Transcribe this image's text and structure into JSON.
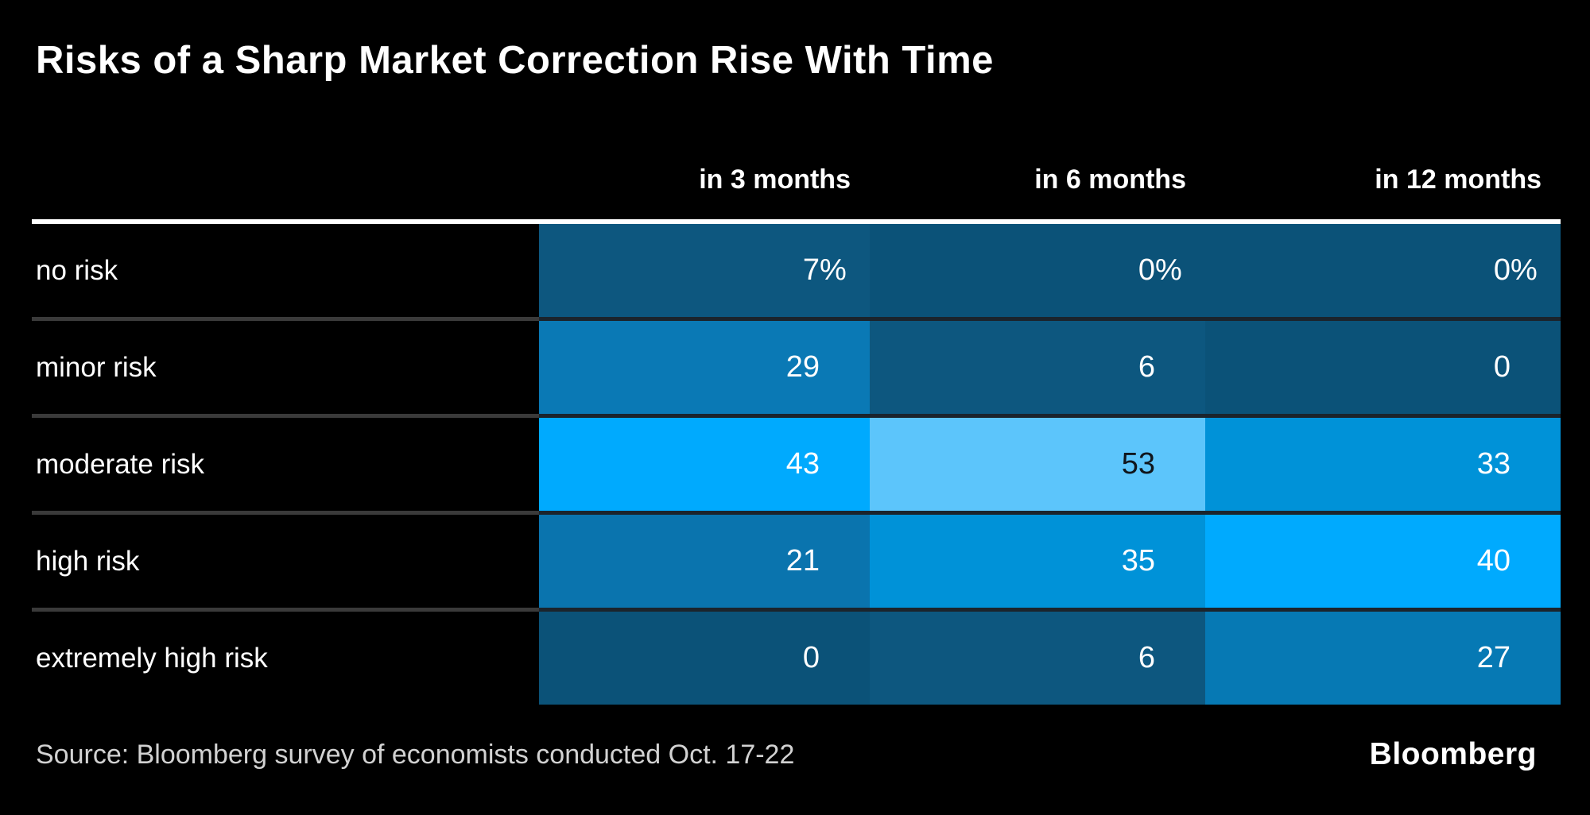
{
  "title": "Risks of a Sharp Market Correction Rise With Time",
  "footer": {
    "source": "Source: Bloomberg survey of economists conducted Oct. 17-22",
    "logo": "Bloomberg"
  },
  "table": {
    "columns": [
      "in 3 months",
      "in 6 months",
      "in 12 months"
    ],
    "rows": [
      {
        "label": "no risk",
        "cells": [
          {
            "value": "7",
            "suffix": "%",
            "bg": "#0D577F",
            "fg": "#FFFFFF"
          },
          {
            "value": "0",
            "suffix": "%",
            "bg": "#0B5278",
            "fg": "#FFFFFF"
          },
          {
            "value": "0",
            "suffix": "%",
            "bg": "#0B5278",
            "fg": "#FFFFFF"
          }
        ]
      },
      {
        "label": "minor risk",
        "cells": [
          {
            "value": "29",
            "suffix": "",
            "bg": "#0A79B5",
            "fg": "#FFFFFF"
          },
          {
            "value": "6",
            "suffix": "",
            "bg": "#0D577F",
            "fg": "#FFFFFF"
          },
          {
            "value": "0",
            "suffix": "",
            "bg": "#0B5278",
            "fg": "#FFFFFF"
          }
        ]
      },
      {
        "label": "moderate risk",
        "cells": [
          {
            "value": "43",
            "suffix": "",
            "bg": "#00AAFE",
            "fg": "#FFFFFF"
          },
          {
            "value": "53",
            "suffix": "",
            "bg": "#5CC5FB",
            "fg": "#10161C"
          },
          {
            "value": "33",
            "suffix": "",
            "bg": "#0092D8",
            "fg": "#FFFFFF"
          }
        ]
      },
      {
        "label": "high risk",
        "cells": [
          {
            "value": "21",
            "suffix": "",
            "bg": "#0A74AE",
            "fg": "#FFFFFF"
          },
          {
            "value": "35",
            "suffix": "",
            "bg": "#0092D8",
            "fg": "#FFFFFF"
          },
          {
            "value": "40",
            "suffix": "",
            "bg": "#00AAFE",
            "fg": "#FFFFFF"
          }
        ]
      },
      {
        "label": "extremely high risk",
        "cells": [
          {
            "value": "0",
            "suffix": "",
            "bg": "#0B5278",
            "fg": "#FFFFFF"
          },
          {
            "value": "6",
            "suffix": "",
            "bg": "#0D577F",
            "fg": "#FFFFFF"
          },
          {
            "value": "27",
            "suffix": "",
            "bg": "#0679B4",
            "fg": "#FFFFFF"
          }
        ]
      }
    ]
  },
  "chart_data": {
    "type": "heatmap",
    "title": "Risks of a Sharp Market Correction Rise With Time",
    "columns": [
      "in 3 months",
      "in 6 months",
      "in 12 months"
    ],
    "rows": [
      "no risk",
      "minor risk",
      "moderate risk",
      "high risk",
      "extremely high risk"
    ],
    "values": [
      [
        7,
        0,
        0
      ],
      [
        29,
        6,
        0
      ],
      [
        43,
        53,
        33
      ],
      [
        21,
        35,
        40
      ],
      [
        0,
        6,
        27
      ]
    ],
    "unit": "%",
    "unit_shown_on_first_row_only": true,
    "legend_position": "none",
    "grid": false,
    "color_scale": {
      "low_value_color": "#0B5278",
      "high_value_color": "#5CC5FB"
    },
    "source": "Source: Bloomberg survey of economists conducted Oct. 17-22",
    "brand": "Bloomberg"
  }
}
